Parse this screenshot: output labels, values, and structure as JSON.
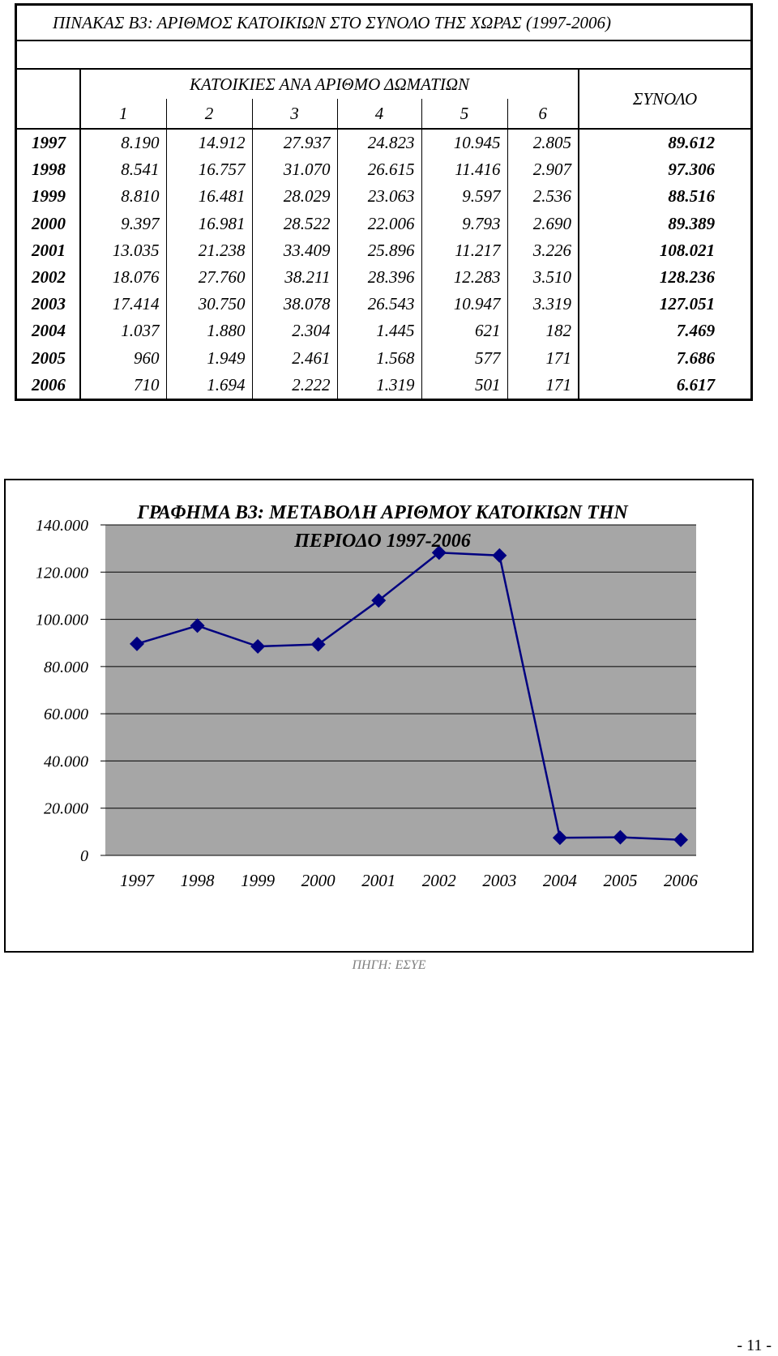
{
  "table": {
    "title": "ΠΙΝΑΚΑΣ Β3: ΑΡΙΘΜΟΣ ΚΑΤΟΙΚΙΩΝ ΣΤΟ ΣΥΝΟΛΟ ΤΗΣ ΧΩΡΑΣ (1997-2006)",
    "group_header": "ΚΑΤΟΙΚΙΕΣ ΑΝΑ ΑΡΙΘΜΟ ΔΩΜΑΤΙΩΝ",
    "room_columns": [
      "1",
      "2",
      "3",
      "4",
      "5",
      "6"
    ],
    "total_header": "ΣΥΝΟΛΟ",
    "rows": [
      {
        "year": "1997",
        "values": [
          "8.190",
          "14.912",
          "27.937",
          "24.823",
          "10.945",
          "2.805"
        ],
        "total": "89.612"
      },
      {
        "year": "1998",
        "values": [
          "8.541",
          "16.757",
          "31.070",
          "26.615",
          "11.416",
          "2.907"
        ],
        "total": "97.306"
      },
      {
        "year": "1999",
        "values": [
          "8.810",
          "16.481",
          "28.029",
          "23.063",
          "9.597",
          "2.536"
        ],
        "total": "88.516"
      },
      {
        "year": "2000",
        "values": [
          "9.397",
          "16.981",
          "28.522",
          "22.006",
          "9.793",
          "2.690"
        ],
        "total": "89.389"
      },
      {
        "year": "2001",
        "values": [
          "13.035",
          "21.238",
          "33.409",
          "25.896",
          "11.217",
          "3.226"
        ],
        "total": "108.021"
      },
      {
        "year": "2002",
        "values": [
          "18.076",
          "27.760",
          "38.211",
          "28.396",
          "12.283",
          "3.510"
        ],
        "total": "128.236"
      },
      {
        "year": "2003",
        "values": [
          "17.414",
          "30.750",
          "38.078",
          "26.543",
          "10.947",
          "3.319"
        ],
        "total": "127.051"
      },
      {
        "year": "2004",
        "values": [
          "1.037",
          "1.880",
          "2.304",
          "1.445",
          "621",
          "182"
        ],
        "total": "7.469"
      },
      {
        "year": "2005",
        "values": [
          "960",
          "1.949",
          "2.461",
          "1.568",
          "577",
          "171"
        ],
        "total": "7.686"
      },
      {
        "year": "2006",
        "values": [
          "710",
          "1.694",
          "2.222",
          "1.319",
          "501",
          "171"
        ],
        "total": "6.617"
      }
    ]
  },
  "chart_data": {
    "type": "line",
    "title": "ΓΡΑΦΗΜΑ Β3: ΜΕΤΑΒΟΛΗ ΑΡΙΘΜΟΥ ΚΑΤΟΙΚΙΩΝ ΤΗΝ ΠΕΡΙΟΔΟ 1997-2006",
    "categories": [
      "1997",
      "1998",
      "1999",
      "2000",
      "2001",
      "2002",
      "2003",
      "2004",
      "2005",
      "2006"
    ],
    "series": [
      {
        "values": [
          89612,
          97306,
          88516,
          89389,
          108021,
          128236,
          127051,
          7469,
          7686,
          6617
        ]
      }
    ],
    "y_ticks": [
      "0",
      "20.000",
      "40.000",
      "60.000",
      "80.000",
      "100.000",
      "120.000",
      "140.000"
    ],
    "ylim": [
      0,
      140000
    ],
    "grid": true,
    "colors": {
      "line": "#000080",
      "plot_bg": "#a6a6a6",
      "grid": "#000000"
    }
  },
  "source": "ΠΗΓΗ: ΕΣΥΕ",
  "page_number": "- 11 -"
}
